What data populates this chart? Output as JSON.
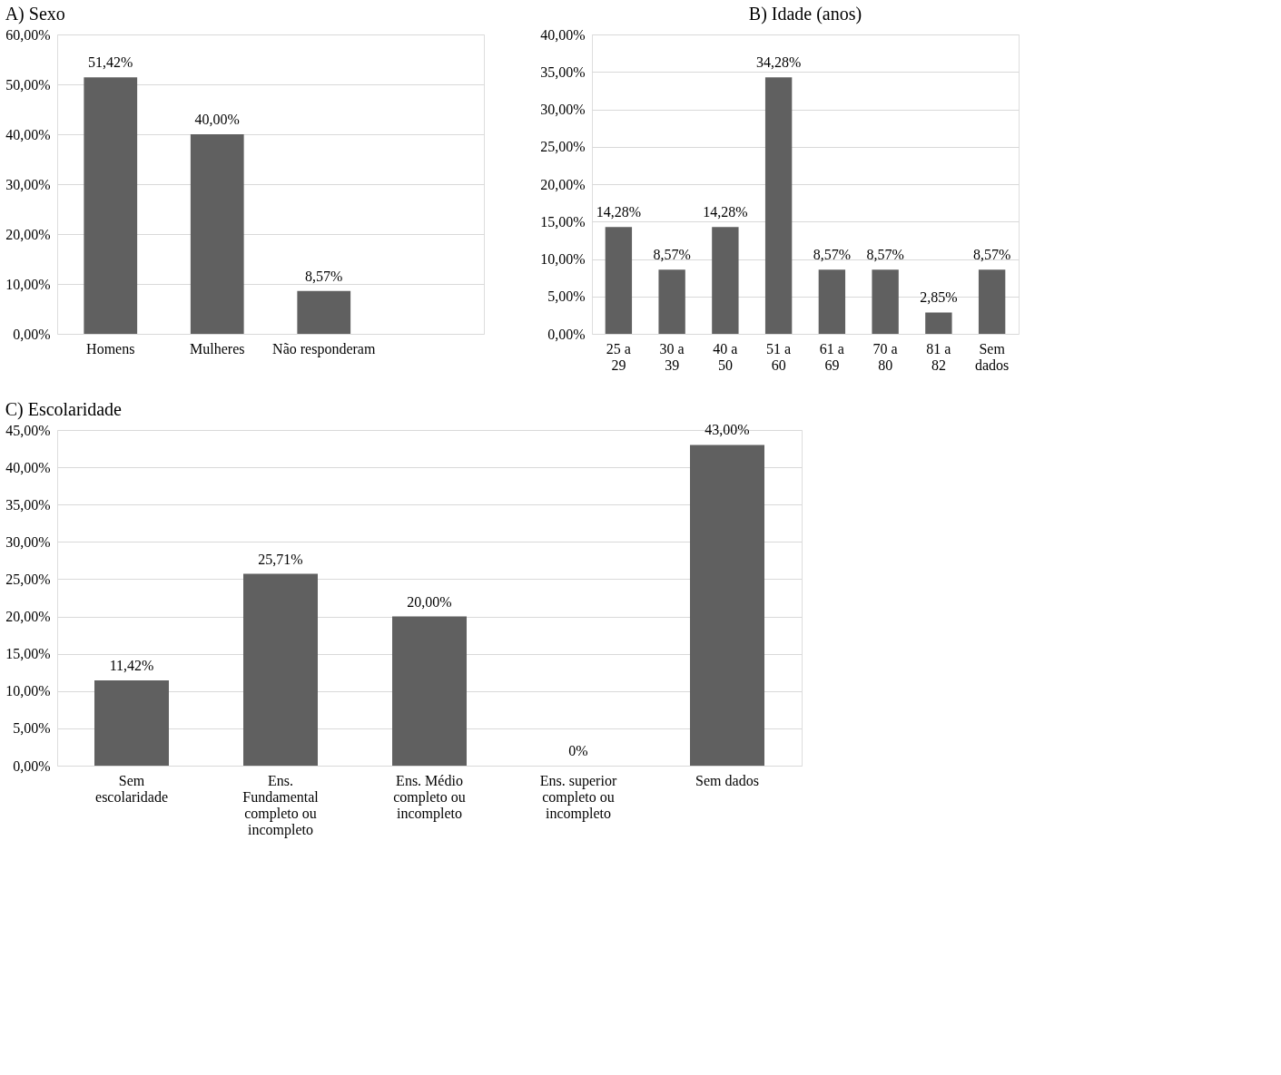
{
  "chart_data": [
    {
      "type": "bar",
      "title": "A)  Sexo",
      "categories": [
        "Homens",
        "Mulheres",
        "Não responderam",
        null
      ],
      "values": [
        51.42,
        40.0,
        8.57,
        null
      ],
      "value_labels": [
        "51,42%",
        "40,00%",
        "8,57%",
        null
      ],
      "color": "#606060",
      "ylim": [
        0,
        60
      ],
      "yticks": [
        {
          "value": 0,
          "label": "0,00%"
        },
        {
          "value": 10,
          "label": "10,00%"
        },
        {
          "value": 20,
          "label": "20,00%"
        },
        {
          "value": 30,
          "label": "30,00%"
        },
        {
          "value": 40,
          "label": "40,00%"
        },
        {
          "value": 50,
          "label": "50,00%"
        },
        {
          "value": 60,
          "label": "60,00%"
        }
      ],
      "grid": "y"
    },
    {
      "type": "bar",
      "title": "B) Idade (anos)",
      "categories": [
        "25 a 29",
        "30 a 39",
        "40 a 50",
        "51 a 60",
        "61 a 69",
        "70 a 80",
        "81 a 82",
        "Sem dados"
      ],
      "values": [
        14.28,
        8.57,
        14.28,
        34.28,
        8.57,
        8.57,
        2.85,
        8.57
      ],
      "value_labels": [
        "14,28%",
        "8,57%",
        "14,28%",
        "34,28%",
        "8,57%",
        "8,57%",
        "2,85%",
        "8,57%"
      ],
      "color": "#606060",
      "ylim": [
        0,
        40
      ],
      "yticks": [
        {
          "value": 0,
          "label": "0,00%"
        },
        {
          "value": 5,
          "label": "5,00%"
        },
        {
          "value": 10,
          "label": "10,00%"
        },
        {
          "value": 15,
          "label": "15,00%"
        },
        {
          "value": 20,
          "label": "20,00%"
        },
        {
          "value": 25,
          "label": "25,00%"
        },
        {
          "value": 30,
          "label": "30,00%"
        },
        {
          "value": 35,
          "label": "35,00%"
        },
        {
          "value": 40,
          "label": "40,00%"
        }
      ],
      "grid": "y"
    },
    {
      "type": "bar",
      "title": "C)  Escolaridade",
      "categories": [
        "Sem escolaridade",
        "Ens. Fundamental completo ou incompleto",
        "Ens. Médio completo ou incompleto",
        "Ens. superior completo ou incompleto",
        "Sem dados"
      ],
      "values": [
        11.42,
        25.71,
        20.0,
        0,
        43.0
      ],
      "value_labels": [
        "11,42%",
        "25,71%",
        "20,00%",
        "0%",
        "43,00%"
      ],
      "color": "#606060",
      "ylim": [
        0,
        45
      ],
      "yticks": [
        {
          "value": 0,
          "label": "0,00%"
        },
        {
          "value": 5,
          "label": "5,00%"
        },
        {
          "value": 10,
          "label": "10,00%"
        },
        {
          "value": 15,
          "label": "15,00%"
        },
        {
          "value": 20,
          "label": "20,00%"
        },
        {
          "value": 25,
          "label": "25,00%"
        },
        {
          "value": 30,
          "label": "30,00%"
        },
        {
          "value": 35,
          "label": "35,00%"
        },
        {
          "value": 40,
          "label": "40,00%"
        },
        {
          "value": 45,
          "label": "45,00%"
        }
      ],
      "grid": "y"
    }
  ]
}
